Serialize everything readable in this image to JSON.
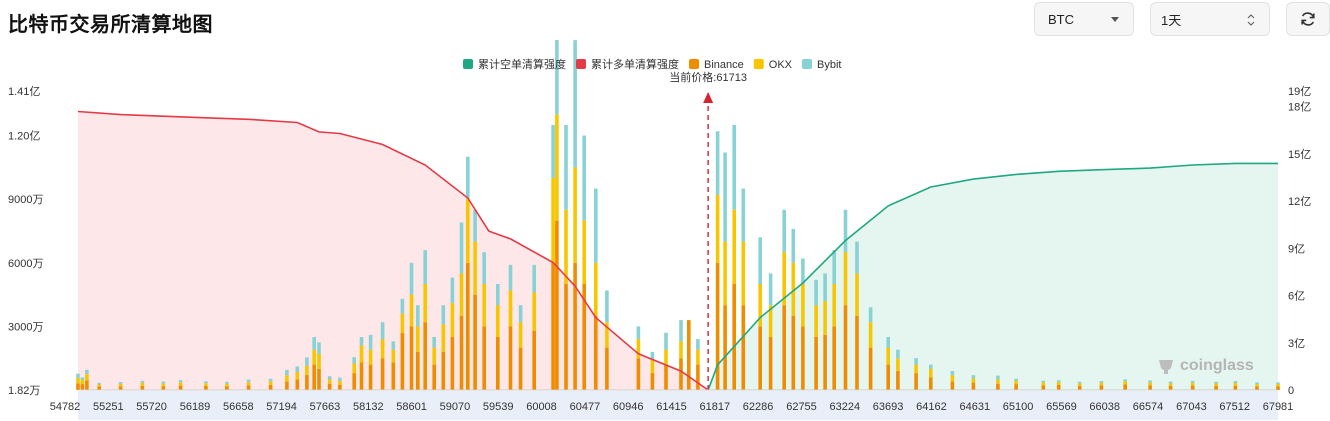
{
  "header": {
    "title": "比特币交易所清算地图",
    "coin_select": "BTC",
    "period_select": "1天"
  },
  "watermark": "coinglass",
  "colors": {
    "short_cum": "#1fa882",
    "long_cum": "#e23b47",
    "binance": "#f08c00",
    "okx": "#f7c600",
    "bybit": "#88d1d4",
    "short_fill": "#e5f5ef",
    "long_fill": "#fde7e9",
    "price_line": "#d6232f"
  },
  "chart_data": {
    "type": "bar",
    "legend": [
      "累计空单清算强度",
      "累计多单清算强度",
      "Binance",
      "OKX",
      "Bybit"
    ],
    "legend_position": "top-center",
    "current_price_label": "当前价格:61713",
    "current_price": 61713,
    "x_tick_labels": [
      "54782",
      "55251",
      "55720",
      "56189",
      "56658",
      "57194",
      "57663",
      "58132",
      "58601",
      "59070",
      "59539",
      "60008",
      "60477",
      "60946",
      "61415",
      "61817",
      "62286",
      "62755",
      "63224",
      "63693",
      "64162",
      "64631",
      "65100",
      "65569",
      "66038",
      "66574",
      "67043",
      "67512",
      "67981"
    ],
    "x_range": [
      54782,
      67981
    ],
    "y_left": {
      "ticks": [
        "1.82万",
        "3000万",
        "6000万",
        "9000万",
        "1.20亿",
        "1.41亿"
      ],
      "values_wan": [
        1.82,
        3000,
        6000,
        9000,
        12000,
        14100
      ],
      "range_wan": [
        1.82,
        14100
      ]
    },
    "y_right": {
      "ticks": [
        "0",
        "3亿",
        "6亿",
        "9亿",
        "12亿",
        "15亿",
        "18亿",
        "19亿"
      ],
      "values_yi": [
        0,
        3,
        6,
        9,
        12,
        15,
        18,
        19
      ],
      "range_yi": [
        0,
        19
      ]
    },
    "long_cumulative_yi": [
      [
        54782,
        17.7
      ],
      [
        55251,
        17.5
      ],
      [
        55720,
        17.4
      ],
      [
        56189,
        17.3
      ],
      [
        56658,
        17.2
      ],
      [
        57194,
        17.0
      ],
      [
        57433,
        16.4
      ],
      [
        57663,
        16.3
      ],
      [
        58132,
        15.6
      ],
      [
        58601,
        14.3
      ],
      [
        59070,
        12.2
      ],
      [
        59300,
        10.1
      ],
      [
        59539,
        9.6
      ],
      [
        60008,
        8.1
      ],
      [
        60250,
        6.6
      ],
      [
        60477,
        4.6
      ],
      [
        60946,
        2.3
      ],
      [
        61415,
        1.2
      ],
      [
        61713,
        0.0
      ]
    ],
    "short_cumulative_yi": [
      [
        61713,
        0.0
      ],
      [
        61817,
        1.6
      ],
      [
        62286,
        4.6
      ],
      [
        62755,
        6.8
      ],
      [
        63224,
        9.5
      ],
      [
        63693,
        11.7
      ],
      [
        64162,
        12.9
      ],
      [
        64631,
        13.4
      ],
      [
        65100,
        13.7
      ],
      [
        65569,
        13.9
      ],
      [
        66038,
        14.0
      ],
      [
        66574,
        14.1
      ],
      [
        67043,
        14.3
      ],
      [
        67512,
        14.4
      ],
      [
        67981,
        14.4
      ]
    ],
    "bars_wan": [
      [
        54782,
        320,
        250,
        200
      ],
      [
        54830,
        280,
        190,
        120
      ],
      [
        54880,
        450,
        300,
        200
      ],
      [
        55015,
        160,
        100,
        80
      ],
      [
        55251,
        170,
        120,
        90
      ],
      [
        55490,
        200,
        140,
        90
      ],
      [
        55720,
        180,
        120,
        100
      ],
      [
        55910,
        210,
        150,
        110
      ],
      [
        56189,
        190,
        130,
        90
      ],
      [
        56420,
        170,
        120,
        100
      ],
      [
        56658,
        220,
        150,
        120
      ],
      [
        56900,
        240,
        170,
        120
      ],
      [
        57080,
        400,
        300,
        250
      ],
      [
        57194,
        500,
        350,
        260
      ],
      [
        57300,
        720,
        420,
        400
      ],
      [
        57380,
        1200,
        700,
        600
      ],
      [
        57433,
        1000,
        700,
        550
      ],
      [
        57550,
        300,
        200,
        150
      ],
      [
        57663,
        250,
        180,
        150
      ],
      [
        57820,
        800,
        450,
        300
      ],
      [
        57900,
        1300,
        800,
        400
      ],
      [
        58000,
        1200,
        700,
        700
      ],
      [
        58132,
        1500,
        900,
        800
      ],
      [
        58250,
        1300,
        600,
        400
      ],
      [
        58350,
        2700,
        900,
        700
      ],
      [
        58450,
        3000,
        1500,
        1500
      ],
      [
        58520,
        1800,
        1200,
        1000
      ],
      [
        58601,
        3200,
        1800,
        1600
      ],
      [
        58700,
        1200,
        800,
        500
      ],
      [
        58800,
        1800,
        1300,
        900
      ],
      [
        58900,
        2500,
        1600,
        1200
      ],
      [
        59000,
        3500,
        2000,
        2400
      ],
      [
        59070,
        6000,
        3000,
        2000
      ],
      [
        59150,
        4500,
        2500,
        1500
      ],
      [
        59250,
        3000,
        2000,
        1500
      ],
      [
        59400,
        2500,
        1500,
        1000
      ],
      [
        59539,
        3000,
        1700,
        1200
      ],
      [
        59650,
        2000,
        1200,
        800
      ],
      [
        59800,
        2800,
        1800,
        1300
      ],
      [
        60008,
        6000,
        4000,
        2500
      ],
      [
        60050,
        8000,
        5000,
        13000
      ],
      [
        60150,
        5000,
        3500,
        4000
      ],
      [
        60250,
        6000,
        4500,
        6000
      ],
      [
        60350,
        5000,
        3000,
        4000
      ],
      [
        60477,
        3500,
        2500,
        3500
      ],
      [
        60600,
        2000,
        1200,
        1500
      ],
      [
        60946,
        1500,
        900,
        600
      ],
      [
        61100,
        800,
        600,
        400
      ],
      [
        61250,
        1200,
        700,
        800
      ],
      [
        61415,
        1500,
        800,
        1000
      ],
      [
        61500,
        3300,
        0,
        0
      ],
      [
        61600,
        1200,
        700,
        500
      ],
      [
        61817,
        6000,
        3200,
        3000
      ],
      [
        61900,
        4000,
        3000,
        4200
      ],
      [
        62000,
        5000,
        3500,
        4000
      ],
      [
        62100,
        4000,
        3000,
        2500
      ],
      [
        62286,
        3000,
        2000,
        2200
      ],
      [
        62400,
        2500,
        1500,
        1500
      ],
      [
        62550,
        4000,
        2500,
        2000
      ],
      [
        62650,
        3500,
        2500,
        1600
      ],
      [
        62755,
        3000,
        2000,
        1200
      ],
      [
        62900,
        2500,
        1500,
        1200
      ],
      [
        63000,
        2600,
        1600,
        1300
      ],
      [
        63100,
        3000,
        2000,
        1600
      ],
      [
        63224,
        4000,
        2500,
        2000
      ],
      [
        63350,
        3500,
        2000,
        1500
      ],
      [
        63500,
        2000,
        1200,
        700
      ],
      [
        63693,
        1200,
        800,
        500
      ],
      [
        63800,
        900,
        600,
        400
      ],
      [
        64000,
        800,
        400,
        300
      ],
      [
        64162,
        600,
        400,
        200
      ],
      [
        64400,
        400,
        300,
        200
      ],
      [
        64631,
        350,
        200,
        150
      ],
      [
        64900,
        300,
        200,
        180
      ],
      [
        65100,
        280,
        150,
        100
      ],
      [
        65400,
        230,
        130,
        80
      ],
      [
        65569,
        240,
        140,
        80
      ],
      [
        65800,
        200,
        120,
        70
      ],
      [
        66038,
        230,
        120,
        70
      ],
      [
        66300,
        260,
        150,
        90
      ],
      [
        66574,
        230,
        130,
        90
      ],
      [
        66800,
        200,
        120,
        80
      ],
      [
        67043,
        210,
        130,
        90
      ],
      [
        67300,
        190,
        120,
        80
      ],
      [
        67512,
        200,
        130,
        90
      ],
      [
        67750,
        170,
        110,
        80
      ],
      [
        67981,
        180,
        110,
        70
      ]
    ]
  }
}
